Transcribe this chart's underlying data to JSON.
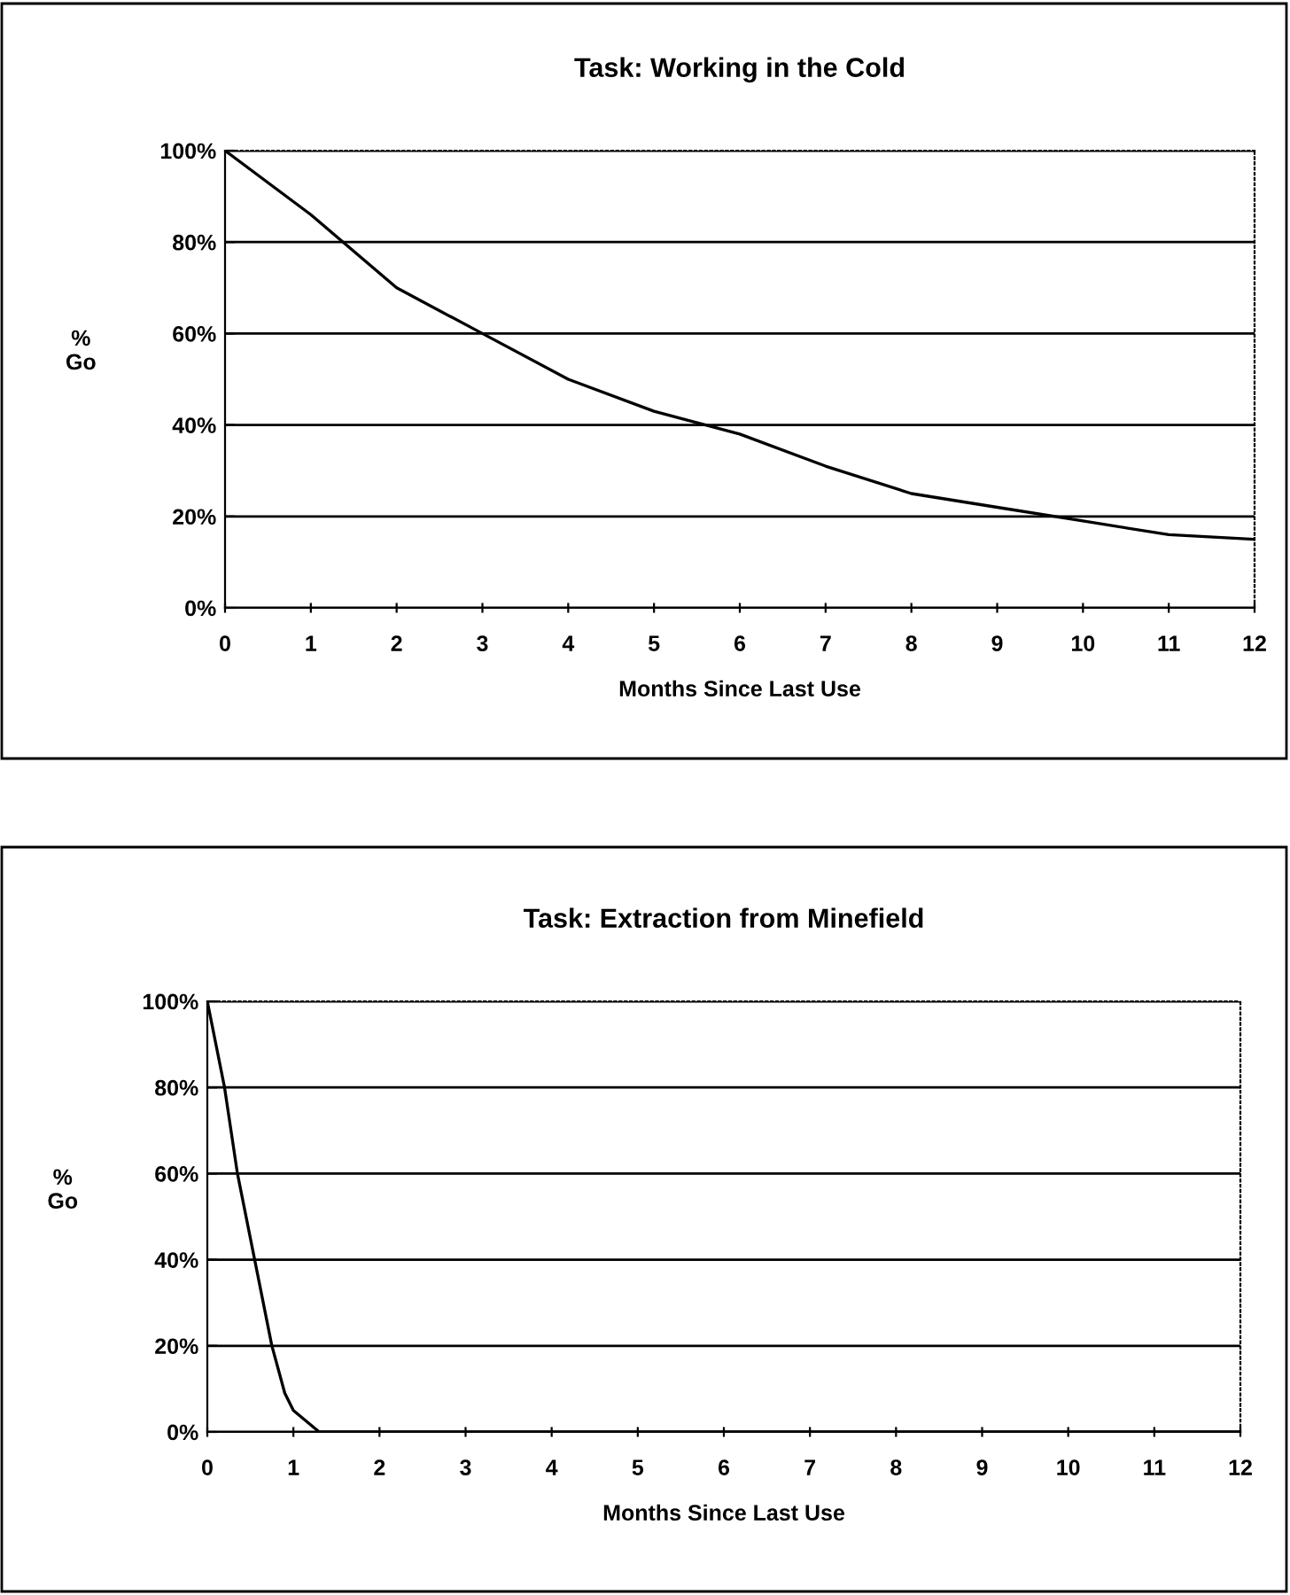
{
  "chart_data": [
    {
      "type": "line",
      "title": "Task: Working in the Cold",
      "xlabel": "Months Since Last Use",
      "ylabel": "%\nGo",
      "x": [
        0,
        1,
        2,
        3,
        4,
        5,
        6,
        7,
        8,
        9,
        10,
        11,
        12
      ],
      "series": [
        {
          "color": "#000000",
          "values": [
            100,
            86,
            70,
            60,
            50,
            43,
            38,
            31,
            25,
            22,
            19,
            16,
            15
          ]
        }
      ],
      "xlim": [
        0,
        12
      ],
      "xticks": [
        0,
        1,
        2,
        3,
        4,
        5,
        6,
        7,
        8,
        9,
        10,
        11,
        12
      ],
      "ylim": [
        0,
        100
      ],
      "yticks": [
        {
          "value": 0,
          "label": "0%"
        },
        {
          "value": 20,
          "label": "20%"
        },
        {
          "value": 40,
          "label": "40%"
        },
        {
          "value": 60,
          "label": "60%"
        },
        {
          "value": 80,
          "label": "80%"
        },
        {
          "value": 100,
          "label": "100%"
        }
      ],
      "grid": "y"
    },
    {
      "type": "line",
      "title": "Task: Extraction from Minefield",
      "xlabel": "Months Since Last Use",
      "ylabel": "%\nGo",
      "series": [
        {
          "color": "#000000",
          "x": [
            0,
            0.2,
            0.35,
            0.55,
            0.75,
            0.9,
            1,
            1.3,
            2,
            3,
            4,
            5,
            6,
            7,
            8,
            9,
            10,
            11,
            12
          ],
          "values": [
            100,
            80,
            60,
            40,
            20,
            9,
            5,
            0,
            0,
            0,
            0,
            0,
            0,
            0,
            0,
            0,
            0,
            0,
            0
          ]
        }
      ],
      "xlim": [
        0,
        12
      ],
      "xticks": [
        0,
        1,
        2,
        3,
        4,
        5,
        6,
        7,
        8,
        9,
        10,
        11,
        12
      ],
      "ylim": [
        0,
        100
      ],
      "yticks": [
        {
          "value": 0,
          "label": "0%"
        },
        {
          "value": 20,
          "label": "20%"
        },
        {
          "value": 40,
          "label": "40%"
        },
        {
          "value": 60,
          "label": "60%"
        },
        {
          "value": 80,
          "label": "80%"
        },
        {
          "value": 100,
          "label": "100%"
        }
      ],
      "grid": "y"
    }
  ]
}
